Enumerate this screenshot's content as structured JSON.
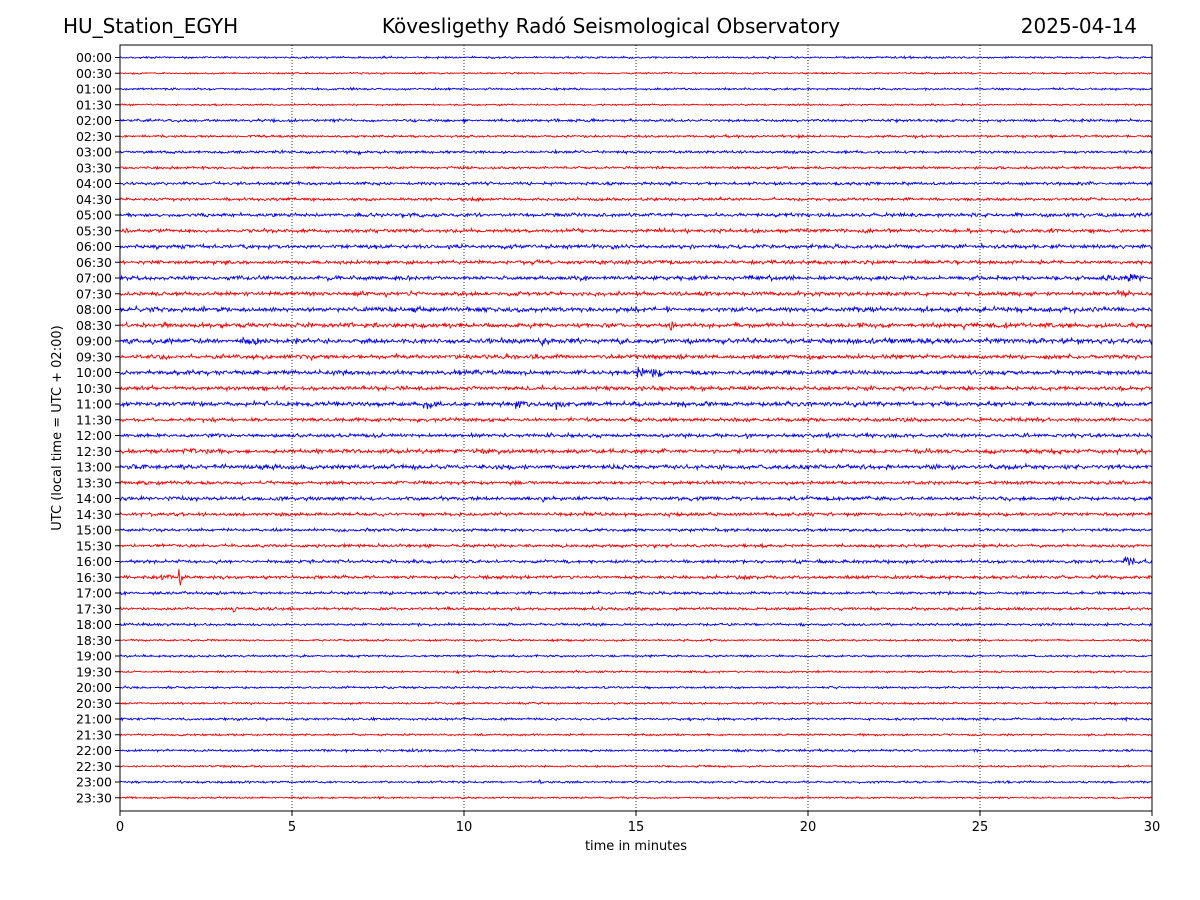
{
  "header": {
    "station": "HU_Station_EGYH",
    "title": "Kövesligethy Radó Seismological Observatory",
    "date": "2025-04-14"
  },
  "chart_data": {
    "type": "line",
    "title": "Kövesligethy Radó Seismological Observatory",
    "xlabel": "time in minutes",
    "ylabel": "UTC (local time = UTC + 02:00)",
    "xlim": [
      0,
      30
    ],
    "x_ticks": [
      0,
      5,
      10,
      15,
      20,
      25,
      30
    ],
    "grid": "vertical dotted at x ticks",
    "colors": {
      "even_row": "#0000ff",
      "odd_row": "#ff0000"
    },
    "rows": [
      {
        "label": "00:00",
        "noise": 0.12,
        "events": []
      },
      {
        "label": "00:30",
        "noise": 0.1,
        "events": []
      },
      {
        "label": "01:00",
        "noise": 0.12,
        "events": []
      },
      {
        "label": "01:30",
        "noise": 0.1,
        "events": []
      },
      {
        "label": "02:00",
        "noise": 0.16,
        "events": [
          {
            "t": 10.0,
            "amp": 0.35,
            "dur": 0.3
          },
          {
            "t": 13.5,
            "amp": 0.3,
            "dur": 0.8
          },
          {
            "t": 16.4,
            "amp": 0.3,
            "dur": 0.2
          }
        ]
      },
      {
        "label": "02:30",
        "noise": 0.14,
        "events": [
          {
            "t": 19.5,
            "amp": 0.3,
            "dur": 0.8
          },
          {
            "t": 23.0,
            "amp": 0.3,
            "dur": 0.8
          }
        ]
      },
      {
        "label": "03:00",
        "noise": 0.16,
        "events": [
          {
            "t": 4.5,
            "amp": 0.3,
            "dur": 0.5
          },
          {
            "t": 6.9,
            "amp": 0.35,
            "dur": 0.4
          }
        ]
      },
      {
        "label": "03:30",
        "noise": 0.15,
        "events": [
          {
            "t": 15.6,
            "amp": 0.3,
            "dur": 0.4
          }
        ]
      },
      {
        "label": "04:00",
        "noise": 0.18,
        "events": [
          {
            "t": 23.7,
            "amp": 0.35,
            "dur": 0.2
          },
          {
            "t": 28.2,
            "amp": 0.35,
            "dur": 0.2
          }
        ]
      },
      {
        "label": "04:30",
        "noise": 0.18,
        "events": [
          {
            "t": 10.4,
            "amp": 0.3,
            "dur": 0.4
          }
        ]
      },
      {
        "label": "05:00",
        "noise": 0.22,
        "events": [
          {
            "t": 28.0,
            "amp": 0.35,
            "dur": 0.3
          }
        ]
      },
      {
        "label": "05:30",
        "noise": 0.22,
        "events": [
          {
            "t": 27.1,
            "amp": 0.45,
            "dur": 0.2
          },
          {
            "t": 28.2,
            "amp": 0.7,
            "dur": 0.1
          }
        ]
      },
      {
        "label": "06:00",
        "noise": 0.24,
        "events": [
          {
            "t": 9.5,
            "amp": 0.35,
            "dur": 0.8
          },
          {
            "t": 16.5,
            "amp": 0.35,
            "dur": 0.5
          }
        ]
      },
      {
        "label": "06:30",
        "noise": 0.22,
        "events": [
          {
            "t": 16.0,
            "amp": 0.3,
            "dur": 0.5
          }
        ]
      },
      {
        "label": "07:00",
        "noise": 0.25,
        "events": [
          {
            "t": 29.3,
            "amp": 0.9,
            "dur": 0.4
          },
          {
            "t": 28.6,
            "amp": 0.5,
            "dur": 1.2
          }
        ]
      },
      {
        "label": "07:30",
        "noise": 0.24,
        "events": [
          {
            "t": 7.7,
            "amp": 0.4,
            "dur": 0.3
          },
          {
            "t": 29.0,
            "amp": 0.4,
            "dur": 0.8
          }
        ]
      },
      {
        "label": "08:00",
        "noise": 0.28,
        "events": [
          {
            "t": 11.5,
            "amp": 0.45,
            "dur": 0.6
          },
          {
            "t": 15.8,
            "amp": 0.5,
            "dur": 0.3
          }
        ]
      },
      {
        "label": "08:30",
        "noise": 0.28,
        "events": [
          {
            "t": 5.5,
            "amp": 0.45,
            "dur": 0.6
          },
          {
            "t": 16.0,
            "amp": 0.7,
            "dur": 0.15
          },
          {
            "t": 24.5,
            "amp": 0.45,
            "dur": 0.4
          }
        ]
      },
      {
        "label": "09:00",
        "noise": 0.3,
        "events": [
          {
            "t": 3.6,
            "amp": 1.2,
            "dur": 0.15
          },
          {
            "t": 3.9,
            "amp": 0.9,
            "dur": 0.35
          },
          {
            "t": 12.2,
            "amp": 0.8,
            "dur": 0.35
          }
        ]
      },
      {
        "label": "09:30",
        "noise": 0.25,
        "events": [
          {
            "t": 5.5,
            "amp": 0.4,
            "dur": 0.5
          }
        ]
      },
      {
        "label": "10:00",
        "noise": 0.26,
        "events": [
          {
            "t": 15.05,
            "amp": 1.8,
            "dur": 0.12
          },
          {
            "t": 15.4,
            "amp": 1.0,
            "dur": 0.35
          },
          {
            "t": 9.8,
            "amp": 0.45,
            "dur": 0.5
          }
        ]
      },
      {
        "label": "10:30",
        "noise": 0.24,
        "events": [
          {
            "t": 16.5,
            "amp": 0.4,
            "dur": 0.6
          }
        ]
      },
      {
        "label": "11:00",
        "noise": 0.27,
        "events": [
          {
            "t": 8.8,
            "amp": 0.7,
            "dur": 0.6
          },
          {
            "t": 11.5,
            "amp": 0.7,
            "dur": 0.8
          },
          {
            "t": 12.5,
            "amp": 0.6,
            "dur": 0.8
          }
        ]
      },
      {
        "label": "11:30",
        "noise": 0.22,
        "events": []
      },
      {
        "label": "12:00",
        "noise": 0.22,
        "events": [
          {
            "t": 18.2,
            "amp": 0.5,
            "dur": 0.8
          },
          {
            "t": 20.5,
            "amp": 0.45,
            "dur": 0.8
          }
        ]
      },
      {
        "label": "12:30",
        "noise": 0.26,
        "events": [
          {
            "t": 10.5,
            "amp": 0.35,
            "dur": 0.8
          }
        ]
      },
      {
        "label": "13:00",
        "noise": 0.28,
        "events": [
          {
            "t": 3.0,
            "amp": 0.45,
            "dur": 0.6
          },
          {
            "t": 15.9,
            "amp": 0.5,
            "dur": 0.2
          }
        ]
      },
      {
        "label": "13:30",
        "noise": 0.2,
        "events": [
          {
            "t": 2.9,
            "amp": 0.35,
            "dur": 0.3
          }
        ]
      },
      {
        "label": "14:00",
        "noise": 0.22,
        "events": [
          {
            "t": 12.3,
            "amp": 0.45,
            "dur": 0.3
          }
        ]
      },
      {
        "label": "14:30",
        "noise": 0.2,
        "events": [
          {
            "t": 13.5,
            "amp": 0.35,
            "dur": 0.6
          }
        ]
      },
      {
        "label": "15:00",
        "noise": 0.18,
        "events": []
      },
      {
        "label": "15:30",
        "noise": 0.18,
        "events": [
          {
            "t": 7.0,
            "amp": 0.3,
            "dur": 0.5
          }
        ]
      },
      {
        "label": "16:00",
        "noise": 0.2,
        "events": [
          {
            "t": 29.2,
            "amp": 0.7,
            "dur": 0.7
          }
        ]
      },
      {
        "label": "16:30",
        "noise": 0.2,
        "events": [
          {
            "t": 1.7,
            "amp": 1.0,
            "dur": 0.15
          },
          {
            "t": 1.2,
            "amp": 0.5,
            "dur": 0.6
          }
        ]
      },
      {
        "label": "17:00",
        "noise": 0.17,
        "events": []
      },
      {
        "label": "17:30",
        "noise": 0.17,
        "events": [
          {
            "t": 3.3,
            "amp": 0.45,
            "dur": 0.2
          },
          {
            "t": 28.8,
            "amp": 0.4,
            "dur": 0.1
          }
        ]
      },
      {
        "label": "18:00",
        "noise": 0.15,
        "events": []
      },
      {
        "label": "18:30",
        "noise": 0.12,
        "events": []
      },
      {
        "label": "19:00",
        "noise": 0.13,
        "events": []
      },
      {
        "label": "19:30",
        "noise": 0.12,
        "events": []
      },
      {
        "label": "20:00",
        "noise": 0.13,
        "events": []
      },
      {
        "label": "20:30",
        "noise": 0.12,
        "events": [
          {
            "t": 28.9,
            "amp": 0.3,
            "dur": 0.2
          }
        ]
      },
      {
        "label": "21:00",
        "noise": 0.15,
        "events": [
          {
            "t": 29.2,
            "amp": 0.3,
            "dur": 0.2
          }
        ]
      },
      {
        "label": "21:30",
        "noise": 0.12,
        "events": []
      },
      {
        "label": "22:00",
        "noise": 0.14,
        "events": []
      },
      {
        "label": "22:30",
        "noise": 0.11,
        "events": []
      },
      {
        "label": "23:00",
        "noise": 0.13,
        "events": [
          {
            "t": 12.2,
            "amp": 0.3,
            "dur": 0.2
          }
        ]
      },
      {
        "label": "23:30",
        "noise": 0.11,
        "events": []
      }
    ]
  }
}
